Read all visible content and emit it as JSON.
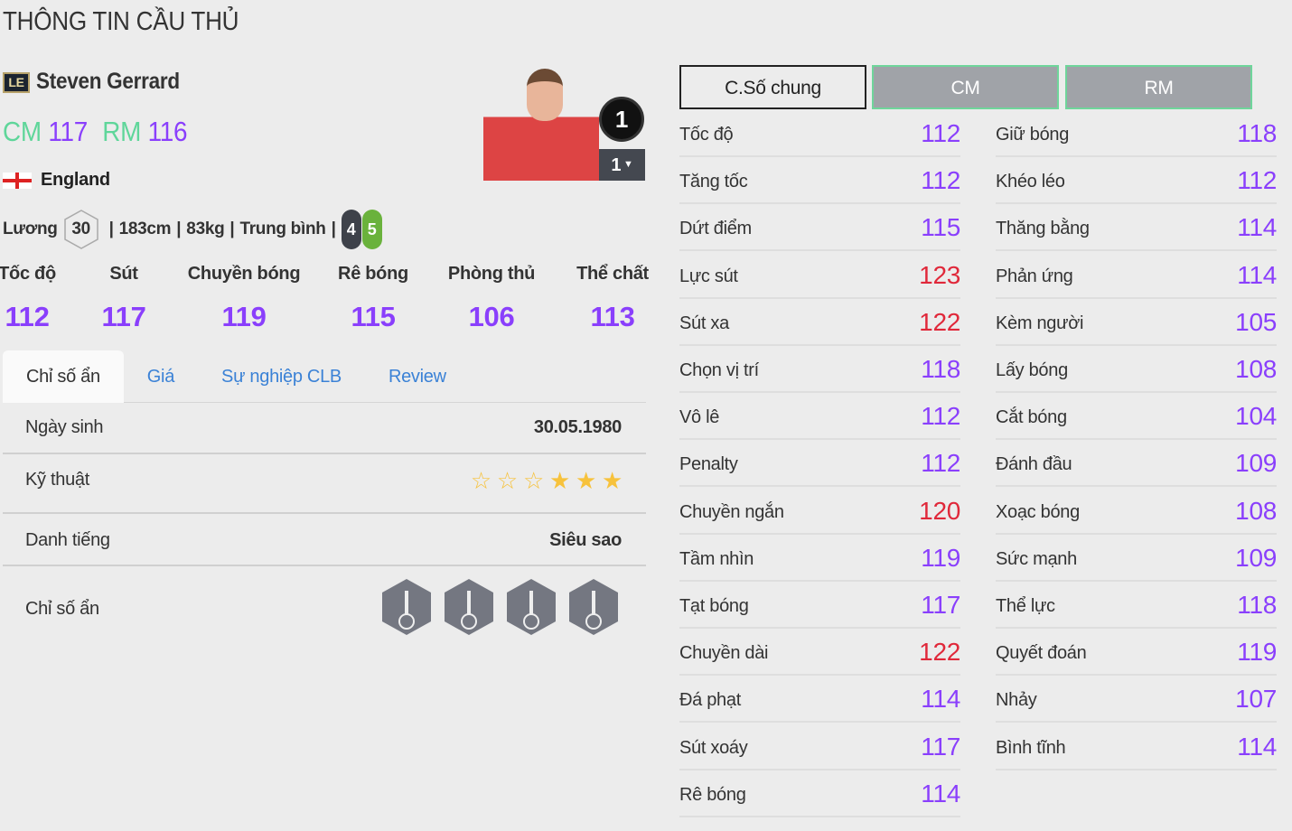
{
  "page_title": "THÔNG TIN CẦU THỦ",
  "player": {
    "season_badge": "LE",
    "name": "Steven Gerrard",
    "positions": [
      {
        "pos": "CM",
        "ovr": "117"
      },
      {
        "pos": "RM",
        "ovr": "116"
      }
    ],
    "nation": "England",
    "salary_label": "Lương",
    "salary": "30",
    "height": "183cm",
    "weight": "83kg",
    "body_type": "Trung bình",
    "weak_foot": "4",
    "strong_foot": "5",
    "level": "1",
    "level_select": "1"
  },
  "main_stats": [
    {
      "label": "Tốc độ",
      "value": "112"
    },
    {
      "label": "Sút",
      "value": "117"
    },
    {
      "label": "Chuyền bóng",
      "value": "119"
    },
    {
      "label": "Rê bóng",
      "value": "115"
    },
    {
      "label": "Phòng thủ",
      "value": "106"
    },
    {
      "label": "Thể chất",
      "value": "113"
    }
  ],
  "tabs": [
    "Chỉ số ẩn",
    "Giá",
    "Sự nghiệp CLB",
    "Review"
  ],
  "info": {
    "birth_label": "Ngày sinh",
    "birth": "30.05.1980",
    "skill_label": "Kỹ thuật",
    "skill_stars": 3,
    "skill_stars_max": 6,
    "rep_label": "Danh tiếng",
    "rep": "Siêu sao",
    "traits_label": "Chỉ số ẩn",
    "traits": [
      "long-shot-taker-icon",
      "finesse-shot-icon",
      "power-header-icon",
      "outside-foot-shot-icon"
    ]
  },
  "colors": {
    "stat": "#8a3ffc",
    "stat_high": "#e0283a",
    "position": "#5fd69a",
    "tab_link": "#3b82d6",
    "star": "#f7c23c"
  },
  "pos_tabs": [
    "C.Số chung",
    "CM",
    "RM"
  ],
  "attributes_left": [
    [
      "Tốc độ",
      "112"
    ],
    [
      "Tăng tốc",
      "112"
    ],
    [
      "Dứt điểm",
      "115"
    ],
    [
      "Lực sút",
      "123"
    ],
    [
      "Sút xa",
      "122"
    ],
    [
      "Chọn vị trí",
      "118"
    ],
    [
      "Vô lê",
      "112"
    ],
    [
      "Penalty",
      "112"
    ],
    [
      "Chuyền ngắn",
      "120"
    ],
    [
      "Tầm nhìn",
      "119"
    ],
    [
      "Tạt bóng",
      "117"
    ],
    [
      "Chuyền dài",
      "122"
    ],
    [
      "Đá phạt",
      "114"
    ],
    [
      "Sút xoáy",
      "117"
    ],
    [
      "Rê bóng",
      "114"
    ]
  ],
  "attributes_right": [
    [
      "Giữ bóng",
      "118"
    ],
    [
      "Khéo léo",
      "112"
    ],
    [
      "Thăng bằng",
      "114"
    ],
    [
      "Phản ứng",
      "114"
    ],
    [
      "Kèm người",
      "105"
    ],
    [
      "Lấy bóng",
      "108"
    ],
    [
      "Cắt bóng",
      "104"
    ],
    [
      "Đánh đầu",
      "109"
    ],
    [
      "Xoạc bóng",
      "108"
    ],
    [
      "Sức mạnh",
      "109"
    ],
    [
      "Thể lực",
      "118"
    ],
    [
      "Quyết đoán",
      "119"
    ],
    [
      "Nhảy",
      "107"
    ],
    [
      "Bình tĩnh",
      "114"
    ]
  ]
}
